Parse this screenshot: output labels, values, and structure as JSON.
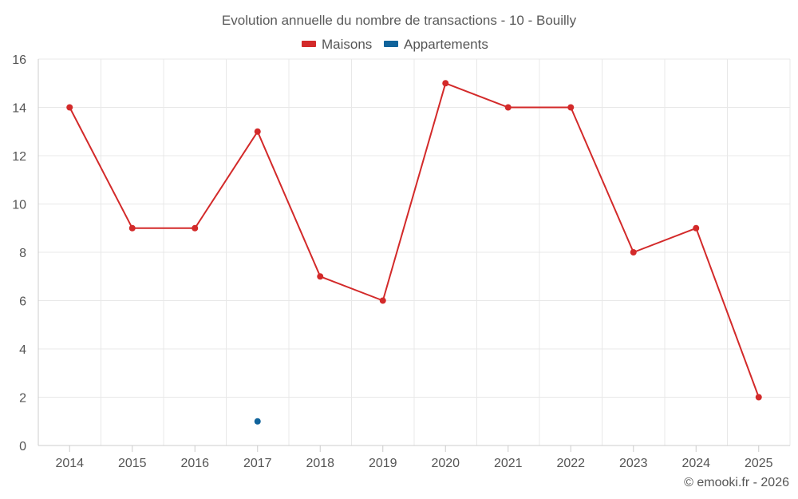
{
  "chart_data": {
    "type": "line",
    "title": "Evolution annuelle du nombre de transactions - 10 - Bouilly",
    "categories": [
      "2014",
      "2015",
      "2016",
      "2017",
      "2018",
      "2019",
      "2020",
      "2021",
      "2022",
      "2023",
      "2024",
      "2025"
    ],
    "series": [
      {
        "name": "Maisons",
        "color": "#d32a2a",
        "values": [
          14,
          9,
          9,
          13,
          7,
          6,
          15,
          14,
          14,
          8,
          9,
          2
        ]
      },
      {
        "name": "Appartements",
        "color": "#10639b",
        "values": [
          null,
          null,
          null,
          1,
          null,
          null,
          null,
          null,
          null,
          null,
          null,
          null
        ]
      }
    ],
    "ylim": [
      0,
      16
    ],
    "yticks": [
      0,
      2,
      4,
      6,
      8,
      10,
      12,
      14,
      16
    ],
    "xlabel": "",
    "ylabel": "",
    "grid": true,
    "legend": "top-center"
  },
  "credit": "© emooki.fr - 2026"
}
